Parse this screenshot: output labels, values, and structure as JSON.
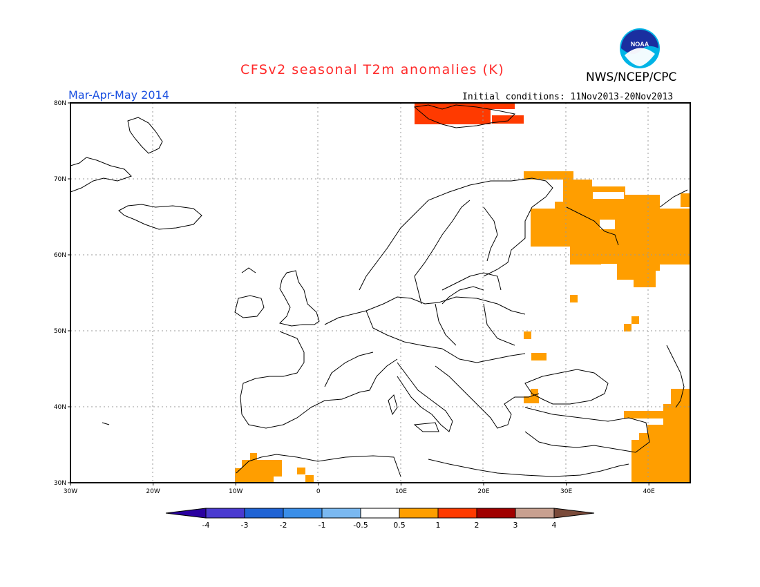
{
  "title": "CFSv2 seasonal T2m anomalies (K)",
  "agency": "NWS/NCEP/CPC",
  "logo_text": "NOAA",
  "period": "Mar-Apr-May 2014",
  "initial_conditions": "Initial conditions: 11Nov2013-20Nov2013",
  "map": {
    "lon_range": [
      -30,
      45
    ],
    "lat_range": [
      30,
      80
    ],
    "lon_ticks": [
      "30W",
      "20W",
      "10W",
      "0",
      "10E",
      "20E",
      "30E",
      "40E"
    ],
    "lat_ticks": [
      "30N",
      "40N",
      "50N",
      "60N",
      "70N",
      "80N"
    ]
  },
  "colorbar": {
    "labels": [
      "-4",
      "-3",
      "-2",
      "-1",
      "-0.5",
      "0.5",
      "1",
      "2",
      "3",
      "4"
    ],
    "colors": [
      "#2a00a0",
      "#4a3ad0",
      "#1f63d4",
      "#3a8ee8",
      "#7ab8f0",
      "#ffffff",
      "#ff9e00",
      "#ff3a00",
      "#a00000",
      "#c8a090",
      "#7a4a3a"
    ]
  },
  "anomaly_regions": [
    {
      "level": "1 to 2",
      "color": "#ff3a00",
      "area": "Svalbard"
    },
    {
      "level": "0.5 to 1",
      "color": "#ff9e00",
      "area": "NW Russia / Kola"
    },
    {
      "level": "0.5 to 1",
      "color": "#ff9e00",
      "area": "Morocco"
    },
    {
      "level": "0.5 to 1",
      "color": "#ff9e00",
      "area": "Ukraine"
    },
    {
      "level": "0.5 to 1",
      "color": "#ff9e00",
      "area": "Turkey / Middle East"
    }
  ]
}
